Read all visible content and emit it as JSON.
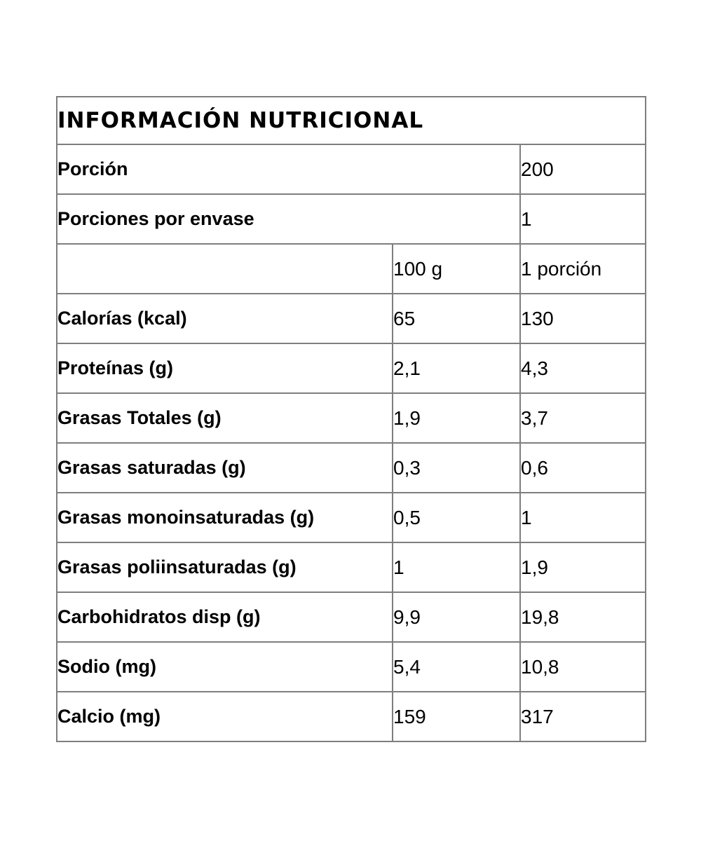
{
  "page": {
    "background_color": "#ffffff",
    "text_color": "#000000",
    "border_color": "#7e7e7e"
  },
  "table": {
    "title": "INFORMACIÓN NUTRICIONAL",
    "meta_rows": [
      {
        "label": "Porción",
        "value": "200"
      },
      {
        "label": "Porciones por envase",
        "value": "1"
      }
    ],
    "column_headers": {
      "col1": "",
      "col2": "100 g",
      "col3": "1 porción"
    },
    "nutrient_rows": [
      {
        "label": "Calorías (kcal)",
        "per_100g": "65",
        "per_portion": "130"
      },
      {
        "label": "Proteínas (g)",
        "per_100g": "2,1",
        "per_portion": "4,3"
      },
      {
        "label": "Grasas Totales (g)",
        "per_100g": "1,9",
        "per_portion": "3,7"
      },
      {
        "label": "Grasas saturadas (g)",
        "per_100g": "0,3",
        "per_portion": "0,6"
      },
      {
        "label": "Grasas monoinsaturadas (g)",
        "per_100g": "0,5",
        "per_portion": "1"
      },
      {
        "label": "Grasas poliinsaturadas (g)",
        "per_100g": "1",
        "per_portion": "1,9"
      },
      {
        "label": "Carbohidratos disp (g)",
        "per_100g": "9,9",
        "per_portion": "19,8"
      },
      {
        "label": "Sodio (mg)",
        "per_100g": "5,4",
        "per_portion": "10,8"
      },
      {
        "label": "Calcio (mg)",
        "per_100g": "159",
        "per_portion": "317"
      }
    ]
  }
}
